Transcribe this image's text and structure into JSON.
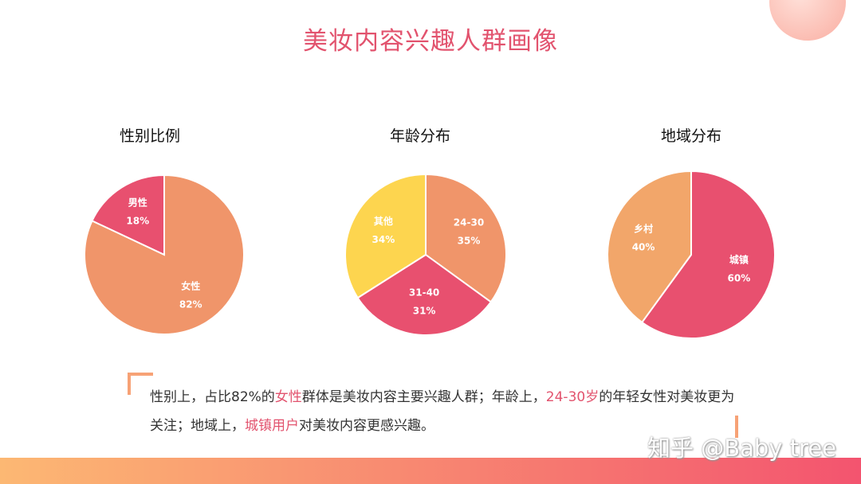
{
  "title": "美妆内容兴趣人群画像",
  "colors": {
    "pink": "#e8506f",
    "salmon": "#f0956a",
    "yellow": "#fdd54f",
    "orange": "#f2a66a"
  },
  "chart_data": [
    {
      "type": "pie",
      "title": "性别比例",
      "slices": [
        {
          "label": "男性",
          "value": 18,
          "text": "18%",
          "color": "#e8506f"
        },
        {
          "label": "女性",
          "value": 82,
          "text": "82%",
          "color": "#f0956a"
        }
      ],
      "order": "male counterclockwise from top"
    },
    {
      "type": "pie",
      "title": "年龄分布",
      "slices": [
        {
          "label": "24-30",
          "value": 35,
          "text": "35%",
          "color": "#f0956a"
        },
        {
          "label": "31-40",
          "value": 31,
          "text": "31%",
          "color": "#e8506f"
        },
        {
          "label": "其他",
          "value": 34,
          "text": "34%",
          "color": "#fdd54f"
        }
      ]
    },
    {
      "type": "pie",
      "title": "地域分布",
      "slices": [
        {
          "label": "城镇",
          "value": 60,
          "text": "60%",
          "color": "#e8506f"
        },
        {
          "label": "乡村",
          "value": 40,
          "text": "40%",
          "color": "#f2a66a"
        }
      ]
    }
  ],
  "note": {
    "p1": "性别上，占比82%的",
    "h1": "女性",
    "p2": "群体是美妆内容主要兴趣人群；年龄上，",
    "h2": "24-30岁",
    "p3": "的年轻女性对美妆更为关注；地域上，",
    "h3": "城镇用户",
    "p4": "对美妆内容更感兴趣。"
  },
  "watermark": "知乎 @Baby tree"
}
